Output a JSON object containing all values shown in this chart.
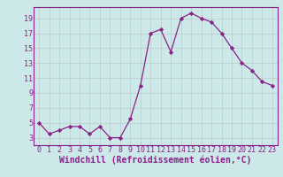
{
  "x": [
    0,
    1,
    2,
    3,
    4,
    5,
    6,
    7,
    8,
    9,
    10,
    11,
    12,
    13,
    14,
    15,
    16,
    17,
    18,
    19,
    20,
    21,
    22,
    23
  ],
  "y": [
    5,
    3.5,
    4,
    4.5,
    4.5,
    3.5,
    4.5,
    3,
    3,
    5.5,
    10,
    17,
    17.5,
    14.5,
    19,
    19.7,
    19,
    18.5,
    17,
    15,
    13,
    12,
    10.5,
    10
  ],
  "line_color": "#882288",
  "marker": "D",
  "marker_size": 2.2,
  "background_color": "#cce8e8",
  "grid_color": "#bbcccc",
  "xlabel": "Windchill (Refroidissement éolien,°C)",
  "xlabel_fontsize": 7,
  "xlim": [
    -0.5,
    23.5
  ],
  "ylim": [
    2.0,
    20.5
  ],
  "yticks": [
    3,
    5,
    7,
    9,
    11,
    13,
    15,
    17,
    19
  ],
  "xticks": [
    0,
    1,
    2,
    3,
    4,
    5,
    6,
    7,
    8,
    9,
    10,
    11,
    12,
    13,
    14,
    15,
    16,
    17,
    18,
    19,
    20,
    21,
    22,
    23
  ],
  "tick_fontsize": 6,
  "spine_color": "#882288"
}
